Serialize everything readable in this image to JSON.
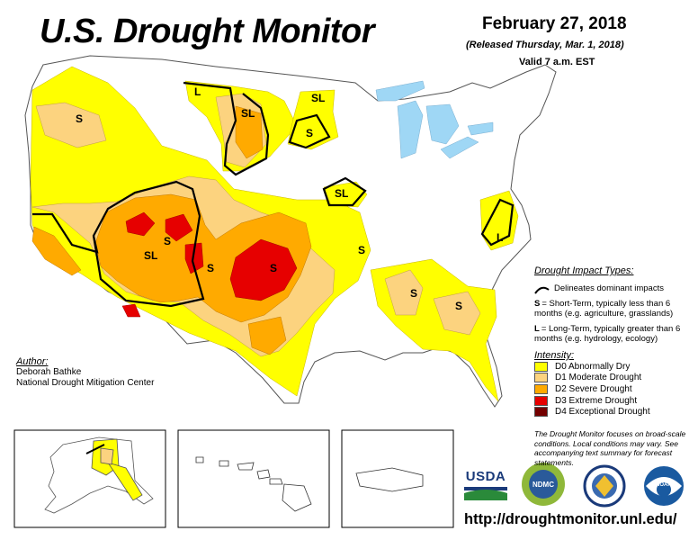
{
  "header": {
    "title": "U.S. Drought Monitor",
    "date": "February 27, 2018",
    "released": "(Released Thursday, Mar. 1, 2018)",
    "valid": "Valid 7 a.m. EST"
  },
  "map": {
    "labels": [
      "S",
      "L",
      "SL",
      "SL",
      "S",
      "SL",
      "S",
      "S",
      "S",
      "SL",
      "S",
      "S",
      "L",
      "S",
      "S"
    ]
  },
  "author": {
    "label": "Author:",
    "name": "Deborah Bathke",
    "org": "National Drought Mitigation Center"
  },
  "impact": {
    "title": "Drought Impact Types:",
    "delineates": "Delineates dominant impacts",
    "s_key": "S",
    "s_text": "= Short-Term, typically less than 6 months (e.g. agriculture, grasslands)",
    "l_key": "L",
    "l_text": "= Long-Term, typically greater than 6 months (e.g. hydrology, ecology)"
  },
  "intensity": {
    "title": "Intensity:",
    "items": [
      {
        "label": "D0 Abnormally Dry",
        "color": "#ffff00"
      },
      {
        "label": "D1 Moderate Drought",
        "color": "#fcd37f"
      },
      {
        "label": "D2 Severe Drought",
        "color": "#ffaa00"
      },
      {
        "label": "D3 Extreme Drought",
        "color": "#e60000"
      },
      {
        "label": "D4 Exceptional Drought",
        "color": "#730000"
      }
    ]
  },
  "note": "The Drought Monitor focuses on broad-scale conditions. Local conditions may vary. See accompanying text summary for forecast statements.",
  "logos": {
    "usda": "USDA",
    "ndmc": "NDMC",
    "noaa": "NOAA"
  },
  "url": "http://droughtmonitor.unl.edu/",
  "colors": {
    "d0": "#ffff00",
    "d1": "#fcd37f",
    "d2": "#ffaa00",
    "d3": "#e60000",
    "d4": "#730000",
    "water": "#9fd7f5"
  }
}
